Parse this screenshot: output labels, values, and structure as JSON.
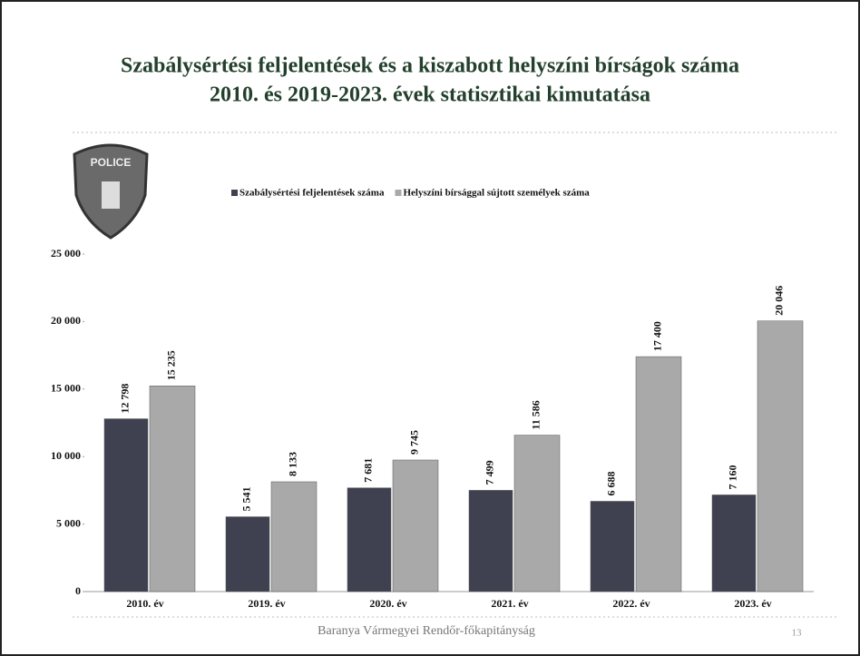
{
  "chart_data": {
    "type": "bar",
    "title": "Szabálysértési feljelentések és a kiszabott helyszíni bírságok száma",
    "subtitle": "2010. és 2019-2023. évek statisztikai kimutatása",
    "categories": [
      "2010. év",
      "2019. év",
      "2020. év",
      "2021. év",
      "2022. év",
      "2023. év"
    ],
    "series": [
      {
        "name": "Szabálysértési feljelentések száma",
        "color": "#3f4050",
        "values": [
          12798,
          5541,
          7681,
          7499,
          6688,
          7160
        ],
        "value_labels": [
          "12 798",
          "5 541",
          "7 681",
          "7 499",
          "6 688",
          "7 160"
        ]
      },
      {
        "name": "Helyszíni bírsággal sújtott személyek száma",
        "color": "#a9a9a9",
        "values": [
          15235,
          8133,
          9745,
          11586,
          17400,
          20046
        ],
        "value_labels": [
          "15 235",
          "8 133",
          "9 745",
          "11 586",
          "17 400",
          "20 046"
        ]
      }
    ],
    "ylim": [
      0,
      25000
    ],
    "yticks": [
      0,
      {
        "value": 5000,
        "label": "5 000"
      },
      {
        "value": 10000,
        "label": "10 000"
      },
      {
        "value": 15000,
        "label": "15 000"
      },
      {
        "value": 20000,
        "label": "20 000"
      },
      {
        "value": 25000,
        "label": "25 000"
      }
    ],
    "legend": "top"
  },
  "logo_text": "POLICE",
  "footer": "Baranya Vármegyei Rendőr-főkapitányság",
  "page_number": "13"
}
